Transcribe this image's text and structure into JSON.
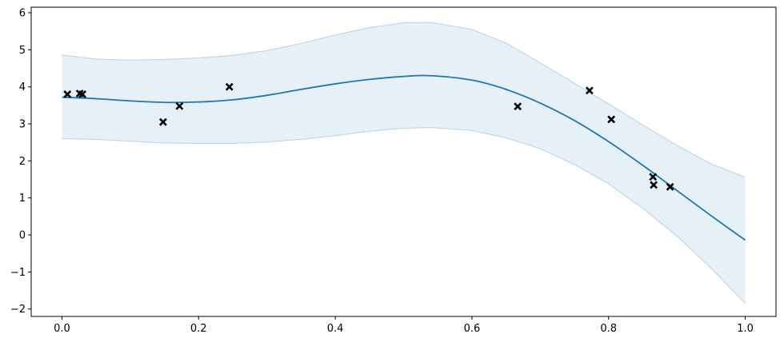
{
  "chart_data": {
    "type": "line",
    "title": "",
    "xlabel": "",
    "ylabel": "",
    "xlim": [
      -0.045,
      1.045
    ],
    "ylim": [
      -2.2,
      6.15
    ],
    "grid": false,
    "legend": "none",
    "xticks": [
      0.0,
      0.2,
      0.4,
      0.6,
      0.8,
      1.0
    ],
    "xtick_labels": [
      "0.0",
      "0.2",
      "0.4",
      "0.6",
      "0.8",
      "1.0"
    ],
    "yticks": [
      -2,
      -1,
      0,
      1,
      2,
      3,
      4,
      5,
      6
    ],
    "ytick_labels": [
      "−2",
      "−1",
      "0",
      "1",
      "2",
      "3",
      "4",
      "5",
      "6"
    ],
    "series": [
      {
        "kind": "mean-line",
        "color": "#1f77b4",
        "x": [
          0.0,
          0.05,
          0.1,
          0.15,
          0.2,
          0.25,
          0.3,
          0.35,
          0.4,
          0.45,
          0.5,
          0.54,
          0.6,
          0.65,
          0.7,
          0.75,
          0.8,
          0.85,
          0.9,
          0.95,
          1.0
        ],
        "y": [
          3.72,
          3.68,
          3.62,
          3.58,
          3.59,
          3.65,
          3.77,
          3.93,
          4.08,
          4.2,
          4.28,
          4.3,
          4.18,
          3.93,
          3.56,
          3.09,
          2.52,
          1.88,
          1.2,
          0.52,
          -0.14
        ]
      },
      {
        "kind": "confidence-band",
        "color": "#1f77b4",
        "opacity": 0.11,
        "x": [
          0.0,
          0.05,
          0.1,
          0.15,
          0.2,
          0.25,
          0.3,
          0.35,
          0.4,
          0.45,
          0.5,
          0.54,
          0.6,
          0.65,
          0.7,
          0.75,
          0.8,
          0.85,
          0.9,
          0.95,
          1.0
        ],
        "upper": [
          4.86,
          4.75,
          4.72,
          4.74,
          4.78,
          4.85,
          4.98,
          5.17,
          5.4,
          5.6,
          5.73,
          5.74,
          5.55,
          5.18,
          4.65,
          4.1,
          3.54,
          2.97,
          2.42,
          1.92,
          1.56
        ],
        "lower": [
          2.6,
          2.58,
          2.53,
          2.48,
          2.47,
          2.47,
          2.51,
          2.58,
          2.68,
          2.8,
          2.88,
          2.9,
          2.82,
          2.62,
          2.33,
          1.9,
          1.38,
          0.72,
          -0.03,
          -0.9,
          -1.85
        ]
      },
      {
        "kind": "observations",
        "marker": "x",
        "color": "#000000",
        "x": [
          0.008,
          0.026,
          0.03,
          0.148,
          0.172,
          0.245,
          0.667,
          0.772,
          0.804,
          0.865,
          0.866,
          0.89
        ],
        "y": [
          3.8,
          3.82,
          3.8,
          3.05,
          3.48,
          4.0,
          3.47,
          3.9,
          3.12,
          1.57,
          1.35,
          1.3
        ]
      }
    ]
  }
}
